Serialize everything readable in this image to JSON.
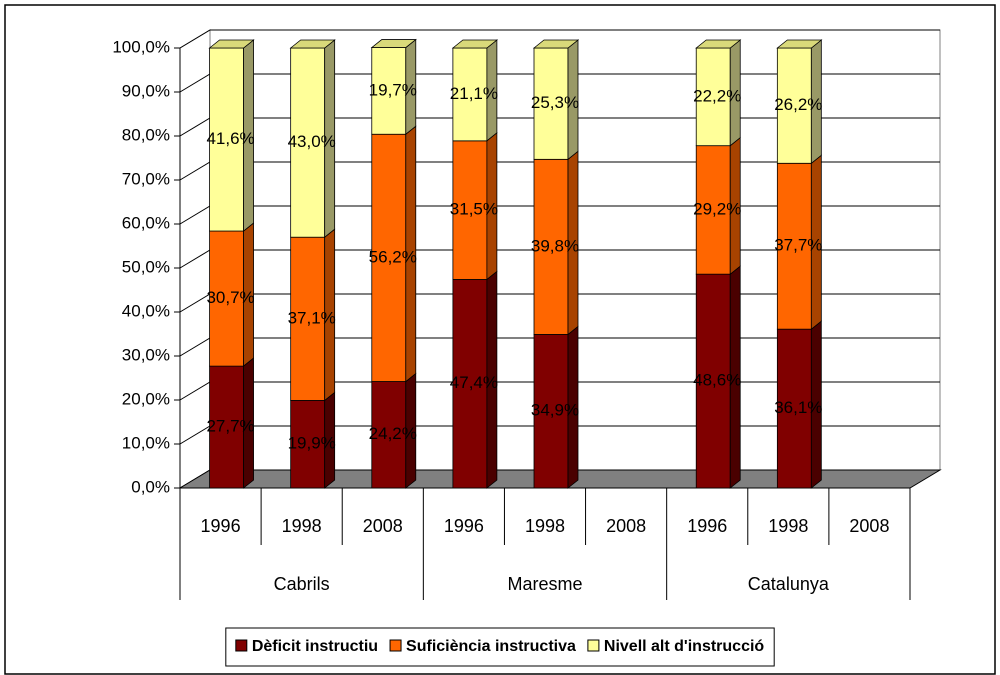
{
  "chart_data": {
    "type": "stacked-bar-3d",
    "categories": [
      "1996",
      "1998",
      "2008",
      "1996",
      "1998",
      "2008",
      "1996",
      "1998",
      "2008"
    ],
    "groups": [
      "Cabrils",
      "Maresme",
      "Catalunya"
    ],
    "series": [
      {
        "name": "Dèficit instructiu",
        "color": "#800000",
        "side": "#4a0000",
        "values": [
          27.7,
          19.9,
          24.2,
          47.4,
          34.9,
          null,
          48.6,
          36.1,
          null
        ],
        "value_labels": [
          "27,7%",
          "19,9%",
          "24,2%",
          "47,4%",
          "34,9%",
          null,
          "48,6%",
          "36,1%",
          null
        ]
      },
      {
        "name": "Suficiència instructiva",
        "color": "#ff6600",
        "side": "#a84300",
        "values": [
          30.7,
          37.1,
          56.2,
          31.5,
          39.8,
          null,
          29.2,
          37.7,
          null
        ],
        "value_labels": [
          "30,7%",
          "37,1%",
          "56,2%",
          "31,5%",
          "39,8%",
          null,
          "29,2%",
          "37,7%",
          null
        ]
      },
      {
        "name": "Nivell alt d'instrucció",
        "color": "#ffff99",
        "side": "#999966",
        "values": [
          41.6,
          43.0,
          19.7,
          21.1,
          25.3,
          null,
          22.2,
          26.2,
          null
        ],
        "value_labels": [
          "41,6%",
          "43,0%",
          "19,7%",
          "21,1%",
          "25,3%",
          null,
          "22,2%",
          "26,2%",
          null
        ]
      }
    ],
    "ylim": [
      0,
      100
    ],
    "yticks": [
      {
        "value": 0,
        "label": "0,0%"
      },
      {
        "value": 10,
        "label": "10,0%"
      },
      {
        "value": 20,
        "label": "20,0%"
      },
      {
        "value": 30,
        "label": "30,0%"
      },
      {
        "value": 40,
        "label": "40,0%"
      },
      {
        "value": 50,
        "label": "50,0%"
      },
      {
        "value": 60,
        "label": "60,0%"
      },
      {
        "value": 70,
        "label": "70,0%"
      },
      {
        "value": 80,
        "label": "80,0%"
      },
      {
        "value": 90,
        "label": "90,0%"
      },
      {
        "value": 100,
        "label": "100,0%"
      }
    ],
    "grid": true
  }
}
